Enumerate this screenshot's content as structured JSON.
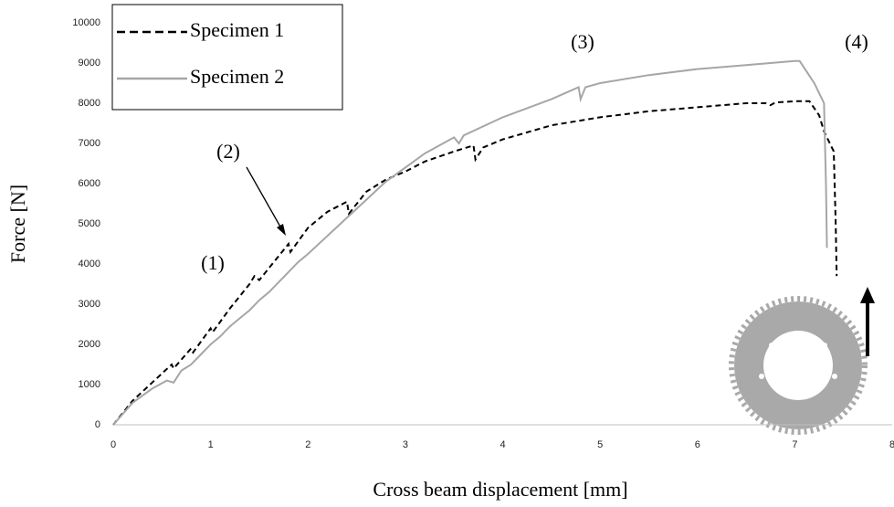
{
  "chart_data": {
    "type": "line",
    "x_label": "Cross beam displacement [mm]",
    "y_label": "Force [N]",
    "xlim": [
      0,
      8
    ],
    "ylim": [
      0,
      10000
    ],
    "xticks": [
      0,
      1,
      2,
      3,
      4,
      5,
      6,
      7,
      8
    ],
    "yticks": [
      0,
      1000,
      2000,
      3000,
      4000,
      5000,
      6000,
      7000,
      8000,
      9000,
      10000
    ],
    "legend": "upper left",
    "annotations": [
      "(1)",
      "(2)",
      "(3)",
      "(4)"
    ],
    "series": [
      {
        "name": "Specimen 1",
        "color": "#000000",
        "dash": "dashed",
        "x": [
          0,
          0.2,
          0.4,
          0.6,
          0.62,
          0.8,
          0.82,
          1,
          1.02,
          1.2,
          1.4,
          1.45,
          1.5,
          1.6,
          1.8,
          1.82,
          2,
          2.2,
          2.4,
          2.42,
          2.6,
          2.8,
          3,
          3.2,
          3.5,
          3.7,
          3.72,
          3.8,
          4,
          4.5,
          5,
          5.5,
          6,
          6.5,
          6.7,
          6.75,
          6.8,
          7,
          7.15,
          7.25,
          7.3,
          7.4,
          7.42,
          7.43
        ],
        "values": [
          0,
          600,
          1050,
          1500,
          1400,
          1900,
          1800,
          2400,
          2300,
          2900,
          3500,
          3700,
          3600,
          3900,
          4500,
          4300,
          4900,
          5300,
          5550,
          5250,
          5800,
          6100,
          6300,
          6550,
          6800,
          6950,
          6600,
          6900,
          7100,
          7450,
          7650,
          7800,
          7900,
          8000,
          8000,
          7950,
          8020,
          8050,
          8050,
          7700,
          7300,
          6800,
          5000,
          3700
        ]
      },
      {
        "name": "Specimen 2",
        "color": "#a6a6a6",
        "dash": "solid",
        "x": [
          0,
          0.2,
          0.4,
          0.55,
          0.62,
          0.7,
          0.8,
          0.9,
          1,
          1.1,
          1.2,
          1.3,
          1.4,
          1.5,
          1.6,
          1.7,
          1.8,
          1.9,
          2,
          2.2,
          2.4,
          2.6,
          2.8,
          3,
          3.2,
          3.5,
          3.55,
          3.6,
          4,
          4.5,
          4.78,
          4.8,
          4.85,
          5,
          5.5,
          6,
          6.5,
          7,
          7.05,
          7.2,
          7.3,
          7.32,
          7.33
        ],
        "values": [
          0,
          550,
          900,
          1100,
          1050,
          1350,
          1500,
          1750,
          2000,
          2200,
          2450,
          2650,
          2850,
          3100,
          3300,
          3550,
          3800,
          4050,
          4250,
          4700,
          5150,
          5600,
          6050,
          6400,
          6750,
          7150,
          7000,
          7200,
          7650,
          8100,
          8400,
          8100,
          8400,
          8500,
          8700,
          8850,
          8950,
          9050,
          9050,
          8500,
          8000,
          6000,
          4400
        ]
      }
    ]
  }
}
